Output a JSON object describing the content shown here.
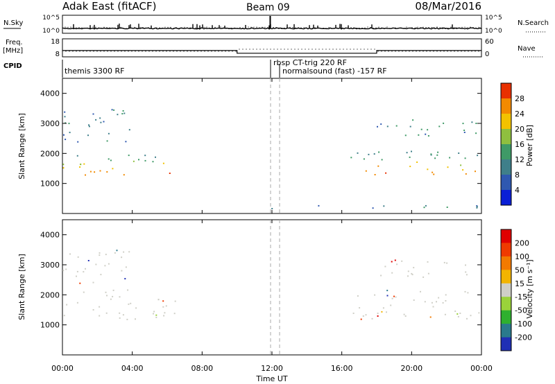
{
  "header": {
    "title": "Adak East (fitACF)",
    "beam": "Beam 09",
    "date": "08/Mar/2016"
  },
  "panels": {
    "nsky": {
      "label": "N.Sky",
      "tick_hi": "10^5",
      "tick_lo": "10^0"
    },
    "nsearch": {
      "label": "N.Search",
      "tick_hi": "10^5",
      "tick_lo": "10^0"
    },
    "freq": {
      "label_1": "Freq.",
      "label_2": "[MHz]",
      "tick_hi": "18",
      "tick_lo": "8"
    },
    "nave": {
      "label": "Nave",
      "tick_hi": "60",
      "tick_lo": "0"
    },
    "cpid": {
      "label": "CPID",
      "items": [
        "themis 3300 RF",
        "rbsp CT-trig 220 RF",
        "normalsound (fast) -157 RF"
      ]
    }
  },
  "axes": {
    "ylabel": "Slant Range [km]",
    "xlabel": "Time UT",
    "y_ticks": [
      "1000",
      "2000",
      "3000",
      "4000"
    ],
    "x_ticks": [
      "00:00",
      "04:00",
      "08:00",
      "12:00",
      "16:00",
      "20:00",
      "00:00"
    ]
  },
  "colorbars": {
    "power": {
      "label": "Power [dB]",
      "ticks": [
        "4",
        "8",
        "12",
        "16",
        "20",
        "24",
        "28"
      ]
    },
    "velocity": {
      "label": "Velocity [m s⁻¹]",
      "ticks": [
        "200",
        "100",
        "50",
        "15",
        "-15",
        "-50",
        "-100",
        "-200"
      ]
    }
  },
  "colors": {
    "power_scale": [
      "#0a1fd6",
      "#2f58b0",
      "#3f7f8a",
      "#3f9a67",
      "#8fbf3f",
      "#f2c200",
      "#f28a00",
      "#e83000"
    ],
    "velocity_scale": [
      "#1f2fb5",
      "#2a7a8c",
      "#2fb02f",
      "#9ad23a",
      "#cfcfc7",
      "#f2b400",
      "#f27a00",
      "#ef3a00",
      "#e00000"
    ],
    "cpid_marker": "#999999"
  },
  "chart_data": [
    {
      "type": "line",
      "title": "N.Sky",
      "x": [
        0,
        1.3,
        2.7,
        4,
        5.5,
        7,
        8.5,
        10,
        11.9,
        12.5,
        14,
        16,
        18,
        20,
        22,
        24
      ],
      "y": [
        2,
        2,
        2,
        2,
        2,
        2,
        2,
        2,
        100000,
        2,
        2,
        2,
        2,
        2,
        2,
        2
      ],
      "xlim": [
        0,
        24
      ],
      "scale": "log"
    },
    {
      "type": "line",
      "title": "Freq. [MHz]",
      "x": [
        0,
        10,
        10,
        12.5,
        12.5,
        18,
        18,
        24
      ],
      "y": [
        11.5,
        11.5,
        10,
        10,
        10,
        10,
        11.5,
        11.5
      ],
      "ylim": [
        8,
        18
      ]
    },
    {
      "type": "heatmap",
      "title": "Power",
      "xlabel": "Time UT",
      "ylabel": "Slant Range [km]",
      "xlim": [
        0,
        24
      ],
      "ylim": [
        0,
        4500
      ],
      "colorbar": "Power [dB]",
      "echo_regions": [
        {
          "x": [
            0,
            6.5
          ],
          "ranges_km": [
            1300,
            2000
          ],
          "power_db": 20
        },
        {
          "x": [
            0,
            4.2
          ],
          "ranges_km": [
            2400,
            3500
          ],
          "power_db": 8
        },
        {
          "x": [
            16.5,
            24
          ],
          "ranges_km": [
            1300,
            2100
          ],
          "power_db": 20
        },
        {
          "x": [
            18,
            24
          ],
          "ranges_km": [
            2600,
            3200
          ],
          "power_db": 8
        },
        {
          "x": [
            11.5,
            24
          ],
          "ranges_km": [
            150,
            300
          ],
          "power_db": 8
        }
      ]
    },
    {
      "type": "heatmap",
      "title": "Velocity",
      "xlabel": "Time UT",
      "ylabel": "Slant Range [km]",
      "xlim": [
        0,
        24
      ],
      "ylim": [
        0,
        4500
      ],
      "colorbar": "Velocity [m s⁻¹]",
      "echo_regions": [
        {
          "x": [
            0,
            6.5
          ],
          "ranges_km": [
            1200,
            2200
          ],
          "velocity_ms": 0
        },
        {
          "x": [
            0,
            4.2
          ],
          "ranges_km": [
            2400,
            3500
          ],
          "velocity_ms": 0
        },
        {
          "x": [
            16.5,
            24
          ],
          "ranges_km": [
            1200,
            2200
          ],
          "velocity_ms": 0
        },
        {
          "x": [
            18,
            24
          ],
          "ranges_km": [
            2600,
            3200
          ],
          "velocity_ms": 0
        }
      ]
    }
  ]
}
